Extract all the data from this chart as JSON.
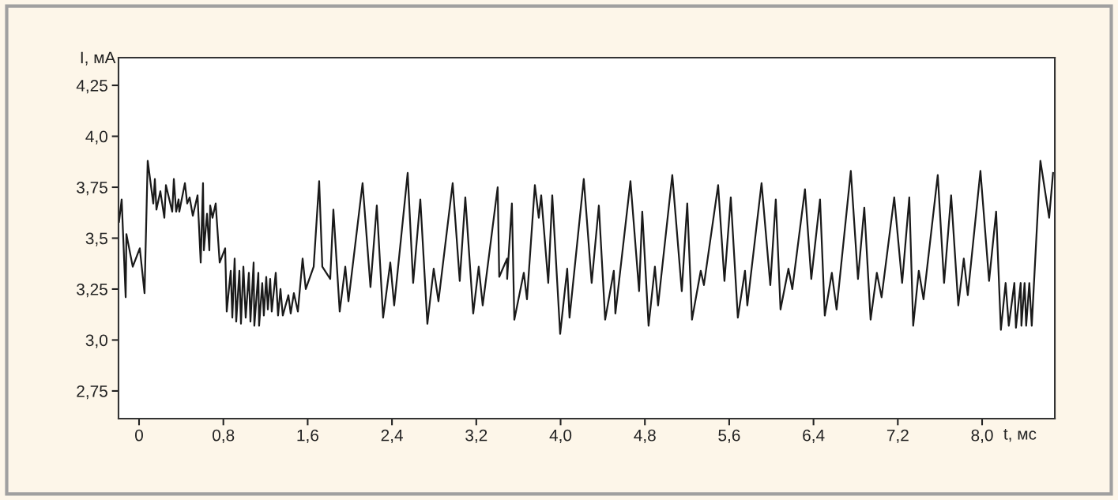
{
  "chart_data": {
    "type": "line",
    "xlabel": "t, мс",
    "ylabel": "I, мА",
    "x": [
      -0.19,
      -0.165,
      -0.127,
      -0.12,
      -0.06,
      0.007,
      0.052,
      0.082,
      0.135,
      0.15,
      0.165,
      0.202,
      0.24,
      0.255,
      0.315,
      0.33,
      0.352,
      0.375,
      0.382,
      0.435,
      0.457,
      0.48,
      0.51,
      0.555,
      0.585,
      0.607,
      0.615,
      0.645,
      0.667,
      0.675,
      0.697,
      0.727,
      0.765,
      0.817,
      0.832,
      0.87,
      0.885,
      0.907,
      0.922,
      0.952,
      0.967,
      0.99,
      1.012,
      1.042,
      1.057,
      1.087,
      1.094,
      1.132,
      1.139,
      1.169,
      1.184,
      1.207,
      1.222,
      1.244,
      1.259,
      1.297,
      1.319,
      1.342,
      1.364,
      1.417,
      1.439,
      1.469,
      1.507,
      1.552,
      1.582,
      1.657,
      1.709,
      1.739,
      1.814,
      1.844,
      1.904,
      1.957,
      1.987,
      2.121,
      2.196,
      2.256,
      2.316,
      2.384,
      2.421,
      2.549,
      2.601,
      2.669,
      2.736,
      2.796,
      2.841,
      2.976,
      3.043,
      3.096,
      3.171,
      3.223,
      3.261,
      3.403,
      3.418,
      3.493,
      3.493,
      3.538,
      3.561,
      3.651,
      3.681,
      3.756,
      3.793,
      3.816,
      3.883,
      3.921,
      3.996,
      4.063,
      4.085,
      4.22,
      4.295,
      4.363,
      4.423,
      4.505,
      4.52,
      4.663,
      4.745,
      4.775,
      4.835,
      4.895,
      4.925,
      5.06,
      5.15,
      5.202,
      5.247,
      5.33,
      5.36,
      5.495,
      5.555,
      5.615,
      5.682,
      5.75,
      5.772,
      5.907,
      5.99,
      6.042,
      6.087,
      6.162,
      6.199,
      6.319,
      6.379,
      6.462,
      6.507,
      6.574,
      6.619,
      6.754,
      6.822,
      6.882,
      6.942,
      7.001,
      7.046,
      7.166,
      7.241,
      7.309,
      7.346,
      7.399,
      7.444,
      7.579,
      7.639,
      7.706,
      7.774,
      7.826,
      7.864,
      7.984,
      8.066,
      8.133,
      8.178,
      8.223,
      8.253,
      8.306,
      8.321,
      8.366,
      8.373,
      8.403,
      8.418,
      8.448,
      8.471,
      8.553,
      8.636,
      8.673
    ],
    "series": [
      {
        "color": "#1a1a1a",
        "values": [
          3.58,
          3.69,
          3.21,
          3.52,
          3.36,
          3.45,
          3.23,
          3.88,
          3.67,
          3.79,
          3.64,
          3.73,
          3.6,
          3.76,
          3.63,
          3.79,
          3.63,
          3.69,
          3.63,
          3.77,
          3.67,
          3.7,
          3.61,
          3.71,
          3.38,
          3.77,
          3.44,
          3.62,
          3.44,
          3.66,
          3.6,
          3.67,
          3.38,
          3.45,
          3.14,
          3.34,
          3.11,
          3.4,
          3.09,
          3.34,
          3.08,
          3.36,
          3.11,
          3.33,
          3.09,
          3.38,
          3.07,
          3.33,
          3.07,
          3.28,
          3.12,
          3.31,
          3.15,
          3.3,
          3.14,
          3.33,
          3.12,
          3.25,
          3.12,
          3.22,
          3.13,
          3.23,
          3.14,
          3.4,
          3.25,
          3.36,
          3.78,
          3.36,
          3.3,
          3.64,
          3.14,
          3.36,
          3.19,
          3.77,
          3.26,
          3.66,
          3.11,
          3.38,
          3.17,
          3.82,
          3.28,
          3.69,
          3.08,
          3.35,
          3.19,
          3.77,
          3.29,
          3.7,
          3.13,
          3.36,
          3.17,
          3.75,
          3.31,
          3.4,
          3.3,
          3.67,
          3.1,
          3.33,
          3.2,
          3.76,
          3.6,
          3.71,
          3.28,
          3.71,
          3.03,
          3.35,
          3.11,
          3.79,
          3.28,
          3.66,
          3.1,
          3.34,
          3.13,
          3.78,
          3.24,
          3.63,
          3.07,
          3.36,
          3.17,
          3.81,
          3.24,
          3.67,
          3.1,
          3.34,
          3.27,
          3.76,
          3.29,
          3.7,
          3.11,
          3.34,
          3.17,
          3.77,
          3.27,
          3.69,
          3.15,
          3.35,
          3.25,
          3.74,
          3.3,
          3.69,
          3.12,
          3.33,
          3.15,
          3.83,
          3.3,
          3.65,
          3.1,
          3.33,
          3.21,
          3.7,
          3.28,
          3.7,
          3.07,
          3.34,
          3.2,
          3.81,
          3.28,
          3.71,
          3.17,
          3.4,
          3.22,
          3.83,
          3.29,
          3.63,
          3.05,
          3.28,
          3.07,
          3.28,
          3.06,
          3.28,
          3.07,
          3.28,
          3.07,
          3.28,
          3.07,
          3.88,
          3.6,
          3.82
        ]
      }
    ],
    "xlim": [
      -0.195,
      8.69
    ],
    "ylim": [
      2.614,
      4.386
    ],
    "xticks": [
      0,
      {
        "value": 0.8,
        "label": "0,8"
      },
      {
        "value": 1.6,
        "label": "1,6"
      },
      {
        "value": 2.4,
        "label": "2,4"
      },
      {
        "value": 3.2,
        "label": "3,2"
      },
      {
        "value": 4.0,
        "label": "4,0"
      },
      {
        "value": 4.8,
        "label": "4,8"
      },
      {
        "value": 5.6,
        "label": "5,6"
      },
      {
        "value": 6.4,
        "label": "6,4"
      },
      {
        "value": 7.2,
        "label": "7,2"
      },
      {
        "value": 8.0,
        "label": "8,0"
      }
    ],
    "yticks": [
      {
        "value": 2.75,
        "label": "2,75"
      },
      {
        "value": 3.0,
        "label": "3,0"
      },
      {
        "value": 3.25,
        "label": "3,25"
      },
      {
        "value": 3.5,
        "label": "3,5"
      },
      {
        "value": 3.75,
        "label": "3,75"
      },
      {
        "value": 4.0,
        "label": "4,0"
      },
      {
        "value": 4.25,
        "label": "4,25"
      }
    ],
    "grid": false,
    "marker": "none",
    "line_style": "solid"
  }
}
